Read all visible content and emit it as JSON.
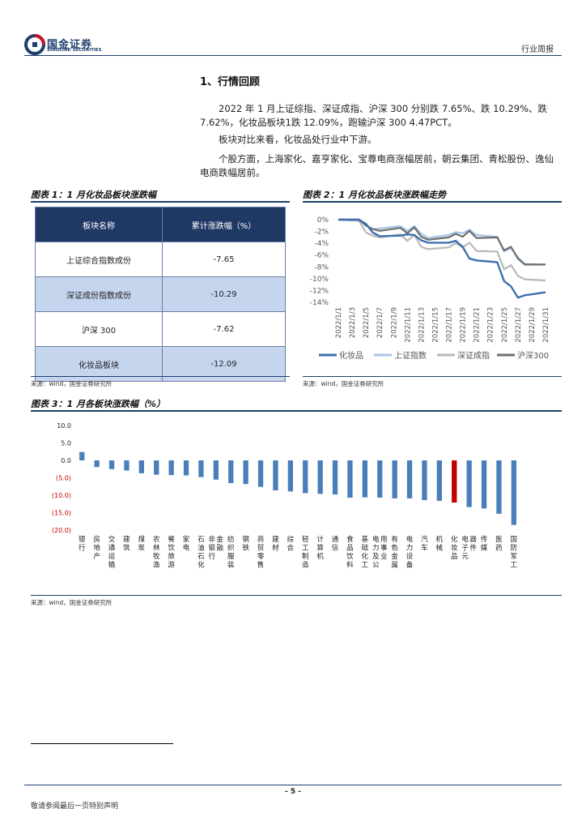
{
  "header": {
    "logo_cn": "国金证券",
    "logo_en": "SINOLINK SECURITIES",
    "right_label": "行业周报"
  },
  "section": {
    "title": "1、行情回顾",
    "paragraphs": [
      "2022 年 1 月上证综指、深证成指、沪深 300 分别跌 7.65%、跌 10.29%、跌 7.62%，化妆品板块1跌 12.09%，跑输沪深 300 4.47PCT。",
      "板块对比来看，化妆品处行业中下游。",
      "个股方面，上海家化、嘉亨家化、宝尊电商涨幅居前，朝云集团、青松股份、逸仙电商跌幅居前。"
    ]
  },
  "fig1": {
    "title": "图表 1：1 月化妆品板块涨跌幅",
    "col_name": "板块名称",
    "col_value": "累计涨跌幅（%）",
    "rows": [
      {
        "name": "上证综合指数成份",
        "value": "-7.65"
      },
      {
        "name": "深证成份指数成份",
        "value": "-10.29"
      },
      {
        "name": "沪深 300",
        "value": "-7.62"
      },
      {
        "name": "化妆品板块",
        "value": "-12.09"
      }
    ],
    "source": "来源：wind，国金证券研究所"
  },
  "fig2": {
    "title": "图表 2：1 月化妆品板块涨跌幅走势",
    "source": "来源：wind，国金证券研究所",
    "colors": {
      "cosmetics": "#3e6fb0",
      "sh": "#a9c6e8",
      "sz": "#b8b8b8",
      "hs300": "#6e6e6e"
    },
    "chart_data": {
      "type": "line",
      "x": [
        "2022/1/1",
        "2022/1/3",
        "2022/1/5",
        "2022/1/7",
        "2022/1/9",
        "2022/1/11",
        "2022/1/13",
        "2022/1/15",
        "2022/1/17",
        "2022/1/19",
        "2022/1/21",
        "2022/1/23",
        "2022/1/25",
        "2022/1/27",
        "2022/1/29",
        "2022/1/31"
      ],
      "x_ticks": [
        "2022/1/1",
        "2022/1/3",
        "2022/1/5",
        "2022/1/7",
        "2022/1/9",
        "2022/1/11",
        "2022/1/13",
        "2022/1/15",
        "2022/1/17",
        "2022/1/19",
        "2022/1/21",
        "2022/1/23",
        "2022/1/25",
        "2022/1/27",
        "2022/1/29",
        "2022/1/31"
      ],
      "y_ticks": [
        "0%",
        "-2%",
        "-4%",
        "-6%",
        "-8%",
        "-10%",
        "-12%",
        "-14%"
      ],
      "ylim": [
        -14,
        0
      ],
      "legend_position": "bottom",
      "series": [
        {
          "name": "化妆品",
          "color_key": "cosmetics",
          "points": [
            [
              "2022/1/1",
              0
            ],
            [
              "2022/1/4",
              0
            ],
            [
              "2022/1/5",
              -0.7
            ],
            [
              "2022/1/6",
              -2.2
            ],
            [
              "2022/1/7",
              -2.8
            ],
            [
              "2022/1/10",
              -2.7
            ],
            [
              "2022/1/11",
              -2.5
            ],
            [
              "2022/1/12",
              -2.6
            ],
            [
              "2022/1/13",
              -3.5
            ],
            [
              "2022/1/14",
              -3.9
            ],
            [
              "2022/1/17",
              -3.9
            ],
            [
              "2022/1/18",
              -3.6
            ],
            [
              "2022/1/19",
              -4.6
            ],
            [
              "2022/1/20",
              -6.6
            ],
            [
              "2022/1/21",
              -6.9
            ],
            [
              "2022/1/24",
              -7.2
            ],
            [
              "2022/1/25",
              -10.4
            ],
            [
              "2022/1/26",
              -11.3
            ],
            [
              "2022/1/27",
              -13.2
            ],
            [
              "2022/1/28",
              -12.8
            ],
            [
              "2022/1/31",
              -12.3
            ]
          ]
        },
        {
          "name": "上证指数",
          "color_key": "sh",
          "points": [
            [
              "2022/1/1",
              0
            ],
            [
              "2022/1/4",
              0
            ],
            [
              "2022/1/5",
              -1.0
            ],
            [
              "2022/1/6",
              -1.6
            ],
            [
              "2022/1/7",
              -1.5
            ],
            [
              "2022/1/10",
              -1.1
            ],
            [
              "2022/1/11",
              -1.9
            ],
            [
              "2022/1/12",
              -1.1
            ],
            [
              "2022/1/13",
              -2.4
            ],
            [
              "2022/1/14",
              -3.1
            ],
            [
              "2022/1/17",
              -2.6
            ],
            [
              "2022/1/18",
              -2.1
            ],
            [
              "2022/1/19",
              -2.3
            ],
            [
              "2022/1/20",
              -1.7
            ],
            [
              "2022/1/21",
              -2.6
            ],
            [
              "2022/1/24",
              -2.9
            ],
            [
              "2022/1/25",
              -5.4
            ],
            [
              "2022/1/26",
              -4.8
            ],
            [
              "2022/1/27",
              -6.4
            ],
            [
              "2022/1/28",
              -7.5
            ],
            [
              "2022/1/31",
              -7.6
            ]
          ]
        },
        {
          "name": "深证成指",
          "color_key": "sz",
          "points": [
            [
              "2022/1/1",
              0
            ],
            [
              "2022/1/4",
              -0.2
            ],
            [
              "2022/1/5",
              -2.2
            ],
            [
              "2022/1/6",
              -2.7
            ],
            [
              "2022/1/7",
              -3.0
            ],
            [
              "2022/1/10",
              -2.5
            ],
            [
              "2022/1/11",
              -3.6
            ],
            [
              "2022/1/12",
              -2.6
            ],
            [
              "2022/1/13",
              -4.6
            ],
            [
              "2022/1/14",
              -5.0
            ],
            [
              "2022/1/17",
              -4.7
            ],
            [
              "2022/1/18",
              -4.0
            ],
            [
              "2022/1/19",
              -4.7
            ],
            [
              "2022/1/20",
              -3.9
            ],
            [
              "2022/1/21",
              -5.3
            ],
            [
              "2022/1/24",
              -5.4
            ],
            [
              "2022/1/25",
              -8.4
            ],
            [
              "2022/1/26",
              -7.7
            ],
            [
              "2022/1/27",
              -9.5
            ],
            [
              "2022/1/28",
              -10.1
            ],
            [
              "2022/1/31",
              -10.3
            ]
          ]
        },
        {
          "name": "沪深300",
          "color_key": "hs300",
          "points": [
            [
              "2022/1/1",
              0
            ],
            [
              "2022/1/4",
              0
            ],
            [
              "2022/1/5",
              -1.0
            ],
            [
              "2022/1/6",
              -1.6
            ],
            [
              "2022/1/7",
              -1.9
            ],
            [
              "2022/1/10",
              -1.4
            ],
            [
              "2022/1/11",
              -2.3
            ],
            [
              "2022/1/12",
              -1.3
            ],
            [
              "2022/1/13",
              -2.9
            ],
            [
              "2022/1/14",
              -3.4
            ],
            [
              "2022/1/17",
              -3.0
            ],
            [
              "2022/1/18",
              -2.4
            ],
            [
              "2022/1/19",
              -2.9
            ],
            [
              "2022/1/20",
              -1.9
            ],
            [
              "2022/1/21",
              -3.1
            ],
            [
              "2022/1/24",
              -3.0
            ],
            [
              "2022/1/25",
              -5.2
            ],
            [
              "2022/1/26",
              -4.6
            ],
            [
              "2022/1/27",
              -6.6
            ],
            [
              "2022/1/28",
              -7.6
            ],
            [
              "2022/1/31",
              -7.6
            ]
          ]
        }
      ]
    }
  },
  "fig3": {
    "title": "图表 3：1 月各板块涨跌幅（%）",
    "source": "来源：wind，国金证券研究所",
    "colors": {
      "bar": "#4a7ebb",
      "highlight": "#c00000"
    },
    "highlight": "化妆品",
    "chart_data": {
      "type": "bar",
      "categories": [
        "银行",
        "房地产",
        "交通运输",
        "建筑",
        "煤炭",
        "农林牧渔",
        "餐饮旅游",
        "家电",
        "石油石化",
        "非银行金融",
        "纺织服装",
        "钢铁",
        "商贸零售",
        "建材",
        "综合",
        "轻工制造",
        "计算机",
        "通信",
        "食品饮料",
        "基础化工",
        "电力及公用事业",
        "有色金属",
        "电力设备",
        "汽车",
        "机械",
        "化妆品",
        "电子元器件",
        "传媒",
        "医药",
        "国防军工"
      ],
      "values": [
        2.4,
        -1.9,
        -2.5,
        -2.9,
        -3.7,
        -4.1,
        -4.2,
        -4.3,
        -4.8,
        -5.5,
        -6.5,
        -6.8,
        -7.6,
        -8.6,
        -8.9,
        -9.4,
        -9.6,
        -9.8,
        -10.7,
        -10.6,
        -10.7,
        -10.9,
        -10.9,
        -11.4,
        -11.6,
        -12.1,
        -13.4,
        -13.8,
        -15.3,
        -18.5
      ],
      "y_ticks": [
        "10.0",
        "5.0",
        "0.0",
        "(5.0)",
        "(10.0)",
        "(15.0)",
        "(20.0)"
      ],
      "ylim": [
        -20,
        10
      ]
    }
  },
  "footer": {
    "page": "- 5 -",
    "note": "敬请参阅最后一页特别声明"
  }
}
